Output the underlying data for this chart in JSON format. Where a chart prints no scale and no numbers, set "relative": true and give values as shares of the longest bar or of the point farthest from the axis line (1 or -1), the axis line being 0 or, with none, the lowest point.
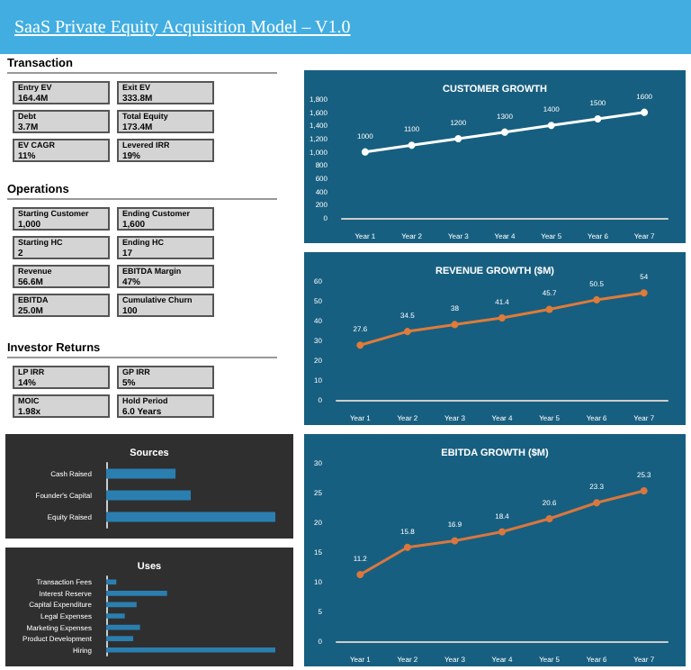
{
  "chart_data": [
    {
      "type": "other",
      "title": "SaaS Private Equity Acquisition Model – V1.0"
    },
    {
      "type": "other",
      "title": "Transaction",
      "annotations": [
        "Entry EV",
        "164.4M",
        "Exit EV",
        "333.8M",
        "Debt",
        "3.7M",
        "Total Equity",
        "173.4M",
        "EV CAGR",
        "11%",
        "Levered IRR",
        "19%"
      ]
    },
    {
      "type": "other",
      "title": "Operations",
      "annotations": [
        "Starting Customer",
        "1,000",
        "Ending Customer",
        "1,600",
        "Starting HC",
        "2",
        "Ending HC",
        "17",
        "Revenue",
        "56.6M",
        "EBITDA Margin",
        "47%",
        "EBITDA",
        "25.0M",
        "Cumulative Churn",
        "100"
      ]
    },
    {
      "type": "other",
      "title": "Investor Returns",
      "annotations": [
        "LP IRR",
        "14%",
        "GP IRR",
        "5%",
        "MOIC",
        "1.98x",
        "Hold Period",
        "6.0 Years"
      ]
    },
    {
      "type": "bar",
      "title": "Sources",
      "orientation": "horizontal",
      "relative": true,
      "categories": [
        "Cash Raised",
        "Founder's Capital",
        "Equity Raised"
      ],
      "color": "#2a7fb0",
      "values": [
        0.41,
        0.5,
        1
      ]
    },
    {
      "type": "bar",
      "title": "Uses",
      "orientation": "horizontal",
      "relative": true,
      "categories": [
        "Transaction Fees",
        "Interest Reserve",
        "Capital Expenditure",
        "Legal Expenses",
        "Marketing Expenses",
        "Product Development",
        "Hiring"
      ],
      "color": "#2a7fb0",
      "values": [
        0.06,
        0.36,
        0.18,
        0.11,
        0.2,
        0.16,
        1
      ]
    },
    {
      "type": "line",
      "title": "CUSTOMER GROWTH",
      "categories": [
        "Year 1",
        "Year 2",
        "Year 3",
        "Year 4",
        "Year 5",
        "Year 6",
        "Year 7"
      ],
      "color": "#ffffff",
      "values": [
        1000,
        1100,
        1200,
        1300,
        1400,
        1500,
        1600
      ],
      "ylim": [
        0,
        1800
      ],
      "yticks": [
        0,
        200,
        400,
        600,
        800,
        {
          "value": 1000,
          "label": "1,000"
        },
        {
          "value": 1200,
          "label": "1,200"
        },
        {
          "value": 1400,
          "label": "1,400"
        },
        {
          "value": 1600,
          "label": "1,600"
        },
        {
          "value": 1800,
          "label": "1,800"
        }
      ],
      "data_labels": true,
      "marker": "circle"
    },
    {
      "type": "line",
      "title": "REVENUE GROWTH ($M)",
      "categories": [
        "Year 1",
        "Year 2",
        "Year 3",
        "Year 4",
        "Year 5",
        "Year 6",
        "Year 7"
      ],
      "color": "#e07b39",
      "values": [
        27.6,
        34.5,
        38,
        41.4,
        45.7,
        50.5,
        54
      ],
      "ylim": [
        0,
        60
      ],
      "yticks": [
        0,
        10,
        20,
        30,
        40,
        50,
        60
      ],
      "data_labels": true,
      "marker": "circle"
    },
    {
      "type": "line",
      "title": "EBITDA GROWTH ($M)",
      "categories": [
        "Year 1",
        "Year 2",
        "Year 3",
        "Year 4",
        "Year 5",
        "Year 6",
        "Year 7"
      ],
      "color": "#d9773e",
      "values": [
        11.2,
        15.8,
        16.9,
        18.4,
        20.6,
        23.3,
        25.3
      ],
      "ylim": [
        0,
        30
      ],
      "yticks": [
        0,
        5,
        10,
        15,
        20,
        25,
        30
      ],
      "data_labels": true,
      "marker": "circle"
    }
  ]
}
